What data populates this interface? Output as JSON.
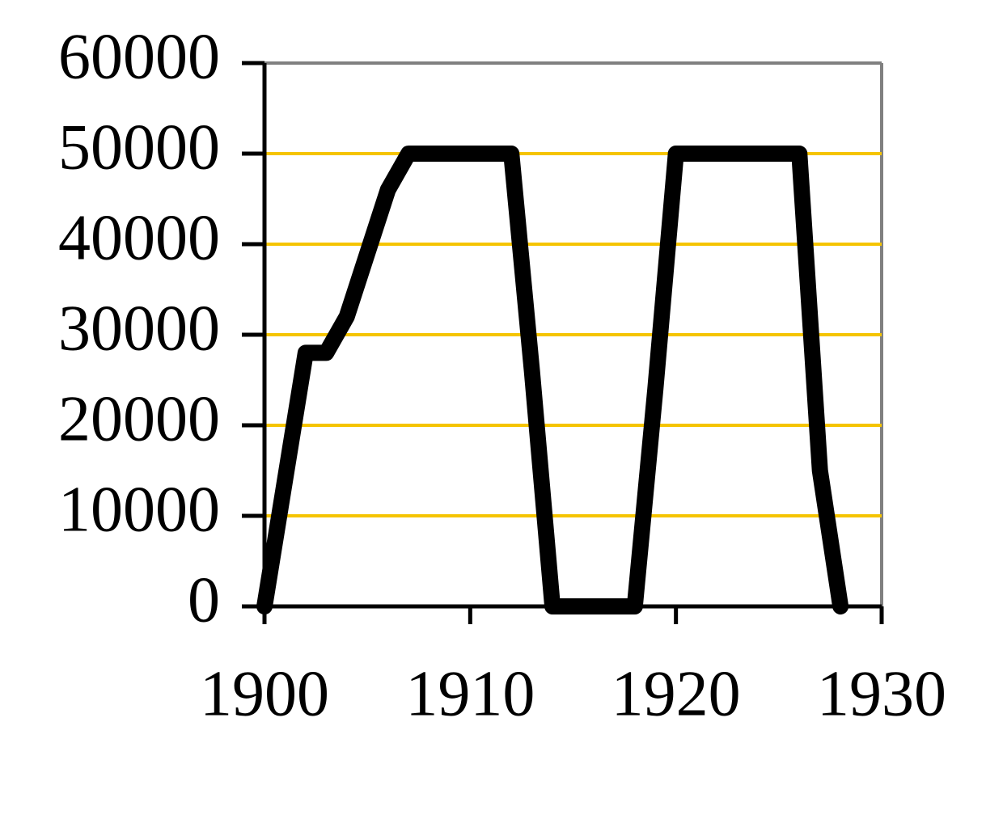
{
  "chart_data": {
    "type": "line",
    "x": [
      1900,
      1901,
      1902,
      1903,
      1904,
      1905,
      1906,
      1907,
      1912,
      1913,
      1914,
      1918,
      1919,
      1920,
      1926,
      1927,
      1928
    ],
    "values": [
      0,
      14000,
      28000,
      28000,
      32000,
      39000,
      46000,
      50000,
      50000,
      26000,
      0,
      0,
      24000,
      50000,
      50000,
      15000,
      0
    ],
    "color": "#000000",
    "xlim": [
      1900,
      1930
    ],
    "xticks": [
      1900,
      1910,
      1920,
      1930
    ],
    "ylim": [
      0,
      60000
    ],
    "yticks": [
      0,
      10000,
      20000,
      30000,
      40000,
      50000,
      60000
    ],
    "grid": true,
    "grid_color": "#f5c400"
  }
}
